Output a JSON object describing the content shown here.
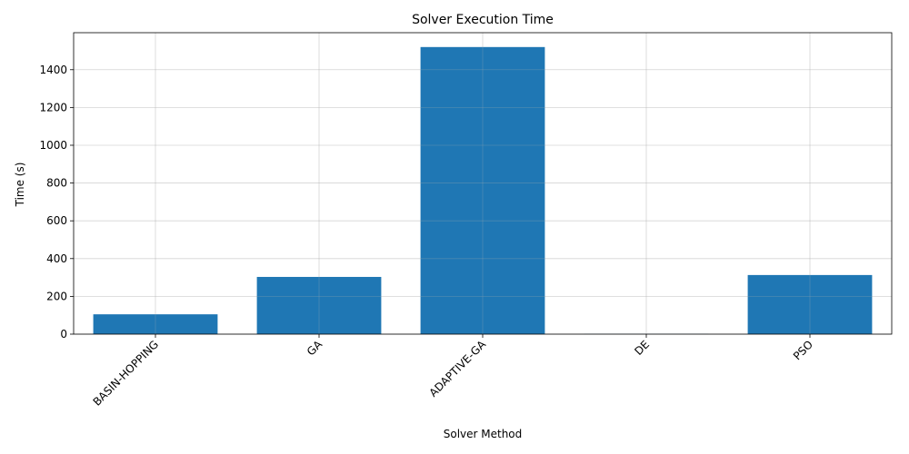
{
  "chart_data": {
    "type": "bar",
    "title": "Solver Execution Time",
    "xlabel": "Solver Method",
    "ylabel": "Time (s)",
    "categories": [
      "BASIN-HOPPING",
      "GA",
      "ADAPTIVE-GA",
      "DE",
      "PSO"
    ],
    "values": [
      105,
      303,
      1520,
      1,
      313
    ],
    "ylim": [
      0,
      1596
    ],
    "yticks": [
      0,
      200,
      400,
      600,
      800,
      1000,
      1200,
      1400
    ],
    "grid": true,
    "bar_color": "#1f77b4",
    "xtick_rotation_deg": 45
  }
}
